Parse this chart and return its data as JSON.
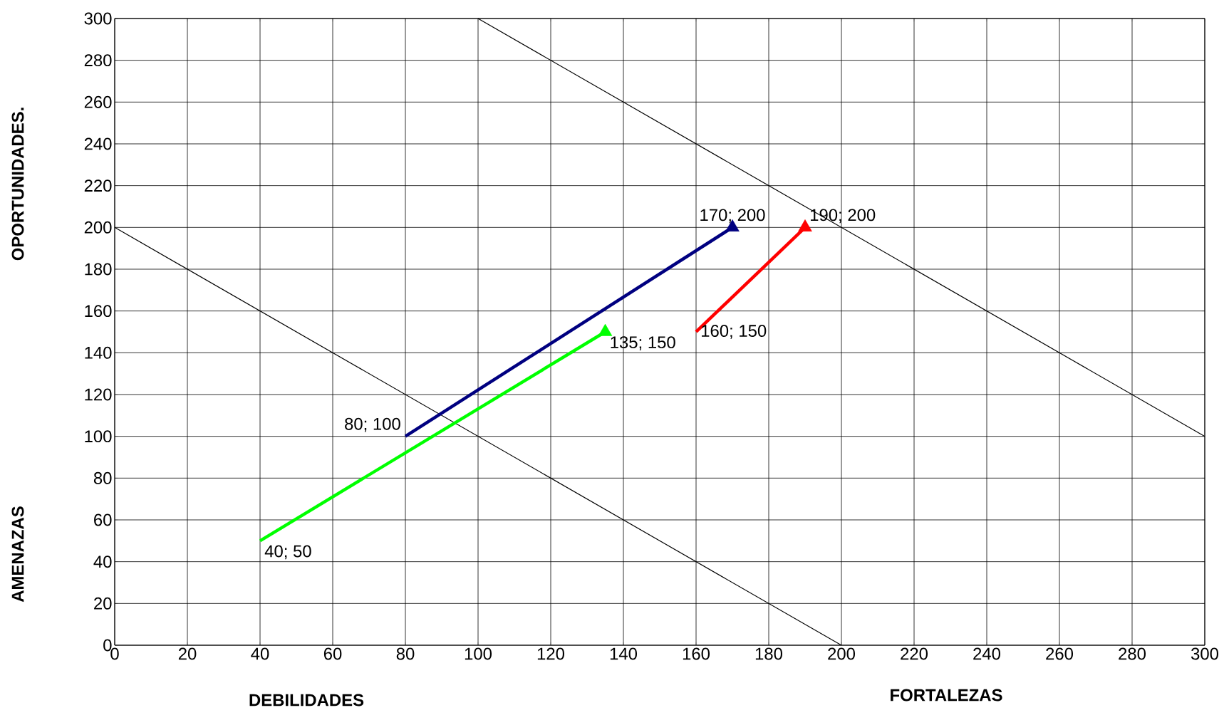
{
  "chart_data": {
    "type": "line",
    "xlabel": "DEBILIDADES",
    "ylabel": "OPORTUNIDADES.",
    "annotations": [
      "FORTALEZAS",
      "AMENAZAS"
    ],
    "xlim": [
      0,
      300
    ],
    "ylim": [
      0,
      300
    ],
    "xticks": [
      0,
      20,
      40,
      60,
      80,
      100,
      120,
      140,
      160,
      180,
      200,
      220,
      240,
      260,
      280,
      300
    ],
    "yticks": [
      0,
      20,
      40,
      60,
      80,
      100,
      120,
      140,
      160,
      180,
      200,
      220,
      240,
      260,
      280,
      300
    ],
    "grid": true,
    "series": [
      {
        "color": "#000000",
        "x": [
          0,
          200
        ],
        "values": [
          200,
          0
        ],
        "marker": "none"
      },
      {
        "color": "#000000",
        "x": [
          100,
          300
        ],
        "values": [
          300,
          100
        ],
        "marker": "none"
      },
      {
        "color": "#000080",
        "x": [
          80,
          170
        ],
        "values": [
          100,
          200
        ],
        "marker": "triangle",
        "value_labels": [
          "80; 100",
          "170; 200"
        ]
      },
      {
        "color": "#00ff00",
        "x": [
          40,
          135
        ],
        "values": [
          50,
          150
        ],
        "marker": "triangle",
        "value_labels": [
          "40; 50",
          "135; 150"
        ]
      },
      {
        "color": "#ff0000",
        "x": [
          160,
          190
        ],
        "values": [
          150,
          200
        ],
        "marker": "triangle",
        "value_labels": [
          "160; 150",
          "190; 200"
        ]
      }
    ]
  }
}
